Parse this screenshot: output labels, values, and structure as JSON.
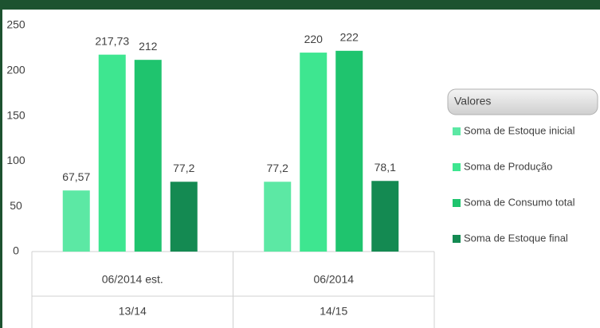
{
  "chart_data": {
    "type": "bar",
    "categories": [
      "06/2014 est.",
      "06/2014"
    ],
    "category_groups": [
      "13/14",
      "14/15"
    ],
    "ylim": [
      0,
      250
    ],
    "yticks": [
      0,
      50,
      100,
      150,
      200,
      250
    ],
    "legend_title": "Valores",
    "legend": "right",
    "series": [
      {
        "name": "Soma de Estoque inicial",
        "color": "#5ce8a4",
        "values": [
          67.57,
          77.2
        ],
        "value_labels": [
          "67,57",
          "77,2"
        ]
      },
      {
        "name": "Soma de Produção",
        "color": "#3ee690",
        "values": [
          217.73,
          220
        ],
        "value_labels": [
          "217,73",
          "220"
        ]
      },
      {
        "name": "Soma de Consumo total",
        "color": "#1fc46e",
        "values": [
          212,
          222
        ]
      },
      {
        "name": "Soma de Estoque final",
        "color": "#148a52",
        "values": [
          77.2,
          78.1
        ],
        "value_labels": [
          "77,2",
          "78,1"
        ]
      }
    ]
  }
}
